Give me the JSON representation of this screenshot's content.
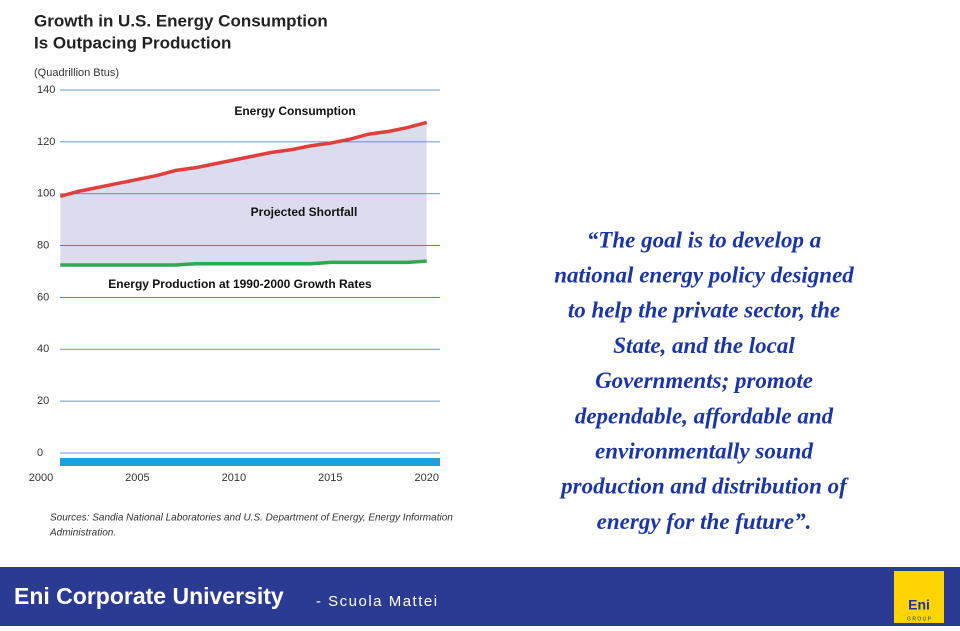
{
  "chart_data": {
    "type": "line",
    "title": [
      "Growth in U.S. Energy Consumption",
      "Is Outpacing Production"
    ],
    "subtitle": "(Quadrillion Btus)",
    "x": [
      2001,
      2002,
      2003,
      2004,
      2005,
      2006,
      2007,
      2008,
      2009,
      2010,
      2011,
      2012,
      2013,
      2014,
      2015,
      2016,
      2017,
      2018,
      2019,
      2020
    ],
    "series": [
      {
        "name": "Energy Consumption",
        "color": "#e0403c",
        "values": [
          99,
          101,
          102.5,
          104,
          105.5,
          107,
          109,
          110,
          111.5,
          113,
          114.5,
          116,
          117,
          118.5,
          119.5,
          121,
          123,
          124,
          125.5,
          127.5
        ]
      },
      {
        "name": "Energy Production at 1990-2000 Growth Rates",
        "color": "#2fa84f",
        "values": [
          72.5,
          72.5,
          72.5,
          72.5,
          72.5,
          72.5,
          72.5,
          73,
          73,
          73,
          73,
          73,
          73,
          73,
          73.5,
          73.5,
          73.5,
          73.5,
          73.5,
          74
        ]
      }
    ],
    "annotations": [
      "Projected Shortfall"
    ],
    "xlim": [
      2000,
      2021
    ],
    "xticks": [
      2000,
      2005,
      2010,
      2015,
      2020
    ],
    "ylim": [
      0,
      140
    ],
    "yticks": [
      0,
      20,
      40,
      60,
      80,
      100,
      120,
      140
    ],
    "grid": true,
    "source": [
      "Sources:  Sandia National Laboratories and U.S. Department of Energy, Energy Information",
      "Administration."
    ]
  },
  "quote": [
    "“The goal is to develop a",
    "national energy policy designed",
    "to help the private sector, the",
    "State, and the local",
    "Governments; promote",
    "dependable, affordable and",
    "environmentally sound",
    "production and distribution of",
    "energy for the future”."
  ],
  "footer": {
    "title": "Eni Corporate University",
    "subtitle": "-  Scuola Mattei",
    "logo": "Eni",
    "logo_sub": "G R O U P"
  }
}
